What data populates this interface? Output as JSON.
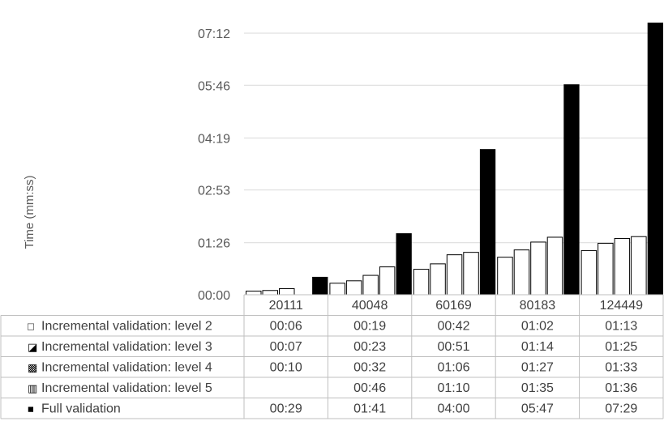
{
  "chart_data": {
    "type": "bar",
    "ylabel": "Time (mm:ss)",
    "yticks": [
      "00:00",
      "01:26",
      "02:53",
      "04:19",
      "05:46",
      "07:12"
    ],
    "ylim_seconds": [
      0,
      432
    ],
    "categories": [
      "20111",
      "40048",
      "60169",
      "80183",
      "124449"
    ],
    "series": [
      {
        "name": "Incremental validation: level 2",
        "values": [
          "00:06",
          "00:19",
          "00:42",
          "01:02",
          "01:13"
        ],
        "fill": "#ffffff",
        "symbol": "□"
      },
      {
        "name": "Incremental validation: level 3",
        "values": [
          "00:07",
          "00:23",
          "00:51",
          "01:14",
          "01:25"
        ],
        "fill": "#ffffff",
        "symbol": "◪"
      },
      {
        "name": "Incremental validation: level 4",
        "values": [
          "00:10",
          "00:32",
          "01:06",
          "01:27",
          "01:33"
        ],
        "fill": "#ffffff",
        "symbol": "▩"
      },
      {
        "name": "Incremental validation: level 5",
        "values": [
          "",
          "00:46",
          "01:10",
          "01:35",
          "01:36"
        ],
        "fill": "#ffffff",
        "symbol": "▥"
      },
      {
        "name": "Full validation",
        "values": [
          "00:29",
          "01:41",
          "04:00",
          "05:47",
          "07:29"
        ],
        "fill": "#000000",
        "symbol": "■"
      }
    ],
    "grid": true,
    "legend": "data-table"
  }
}
